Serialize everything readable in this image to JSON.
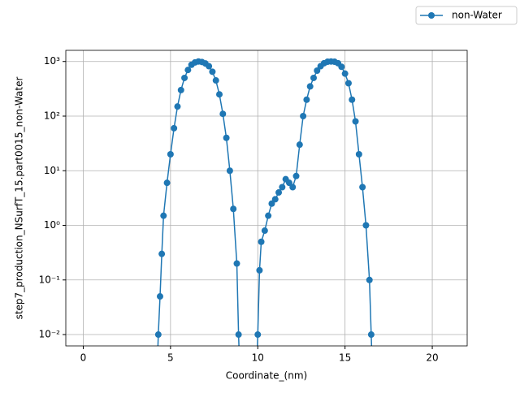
{
  "chart_data": {
    "type": "line",
    "xlabel": "Coordinate_(nm)",
    "ylabel": "step7_production_NSurfT_15.part0015_non-Water",
    "x": [
      4.2,
      4.3,
      4.4,
      4.5,
      4.6,
      4.8,
      5.0,
      5.2,
      5.4,
      5.6,
      5.8,
      6.0,
      6.2,
      6.4,
      6.6,
      6.8,
      7.0,
      7.2,
      7.4,
      7.6,
      7.8,
      8.0,
      8.2,
      8.4,
      8.6,
      8.8,
      8.9,
      9.0,
      9.9,
      10.0,
      10.1,
      10.2,
      10.4,
      10.6,
      10.8,
      11.0,
      11.2,
      11.4,
      11.6,
      11.8,
      12.0,
      12.2,
      12.4,
      12.6,
      12.8,
      13.0,
      13.2,
      13.4,
      13.6,
      13.8,
      14.0,
      14.2,
      14.4,
      14.6,
      14.8,
      15.0,
      15.2,
      15.4,
      15.6,
      15.8,
      16.0,
      16.2,
      16.4,
      16.5,
      16.6
    ],
    "series": [
      {
        "name": "non-Water",
        "color": "#1f77b4",
        "values": [
          0.001,
          0.01,
          0.05,
          0.3,
          1.5,
          6,
          20,
          60,
          150,
          300,
          500,
          700,
          870,
          960,
          1000,
          980,
          920,
          820,
          650,
          450,
          250,
          110,
          40,
          10,
          2,
          0.2,
          0.01,
          0.001,
          0.001,
          0.01,
          0.15,
          0.5,
          0.8,
          1.5,
          2.5,
          3,
          4,
          5,
          7,
          6,
          5,
          8,
          30,
          100,
          200,
          350,
          500,
          680,
          820,
          930,
          990,
          1000,
          990,
          930,
          800,
          600,
          400,
          200,
          80,
          20,
          5,
          1,
          0.1,
          0.01,
          0.001
        ]
      }
    ],
    "xlim": [
      -1,
      22
    ],
    "xticks": [
      0,
      5,
      10,
      15,
      20
    ],
    "ylim": [
      0.0062,
      1600
    ],
    "log_y": true,
    "yticks": [
      {
        "value": 0.01,
        "label": "10⁻²"
      },
      {
        "value": 0.1,
        "label": "10⁻¹"
      },
      {
        "value": 1,
        "label": "10⁰"
      },
      {
        "value": 10,
        "label": "10¹"
      },
      {
        "value": 100,
        "label": "10²"
      },
      {
        "value": 1000,
        "label": "10³"
      }
    ],
    "grid": true,
    "legend": "upper right"
  }
}
